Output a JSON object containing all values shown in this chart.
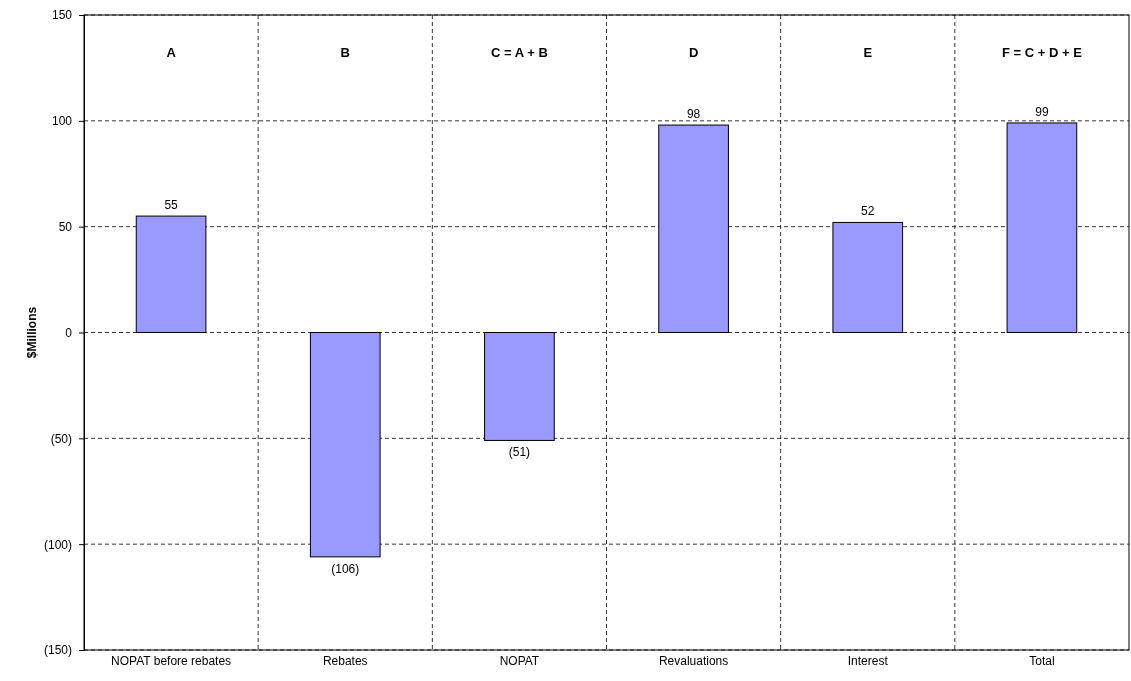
{
  "chart_data": {
    "type": "bar",
    "ylabel": "$Millions",
    "categories": [
      "NOPAT before rebates",
      "Rebates",
      "NOPAT",
      "Revaluations",
      "Interest",
      "Total"
    ],
    "values": [
      55,
      -106,
      -51,
      98,
      52,
      99
    ],
    "value_labels": [
      "55",
      "(106)",
      "(51)",
      "98",
      "52",
      "99"
    ],
    "color": "#9999ff",
    "ylim": [
      -150,
      150
    ],
    "yticks": [
      {
        "value": -150,
        "label": "(150)"
      },
      {
        "value": -100,
        "label": "(100)"
      },
      {
        "value": -50,
        "label": "(50)"
      },
      0,
      50,
      100,
      150
    ],
    "grid": true,
    "annotations": [
      "A",
      "B",
      "C = A + B",
      "D",
      "E",
      "F = C + D + E"
    ]
  }
}
